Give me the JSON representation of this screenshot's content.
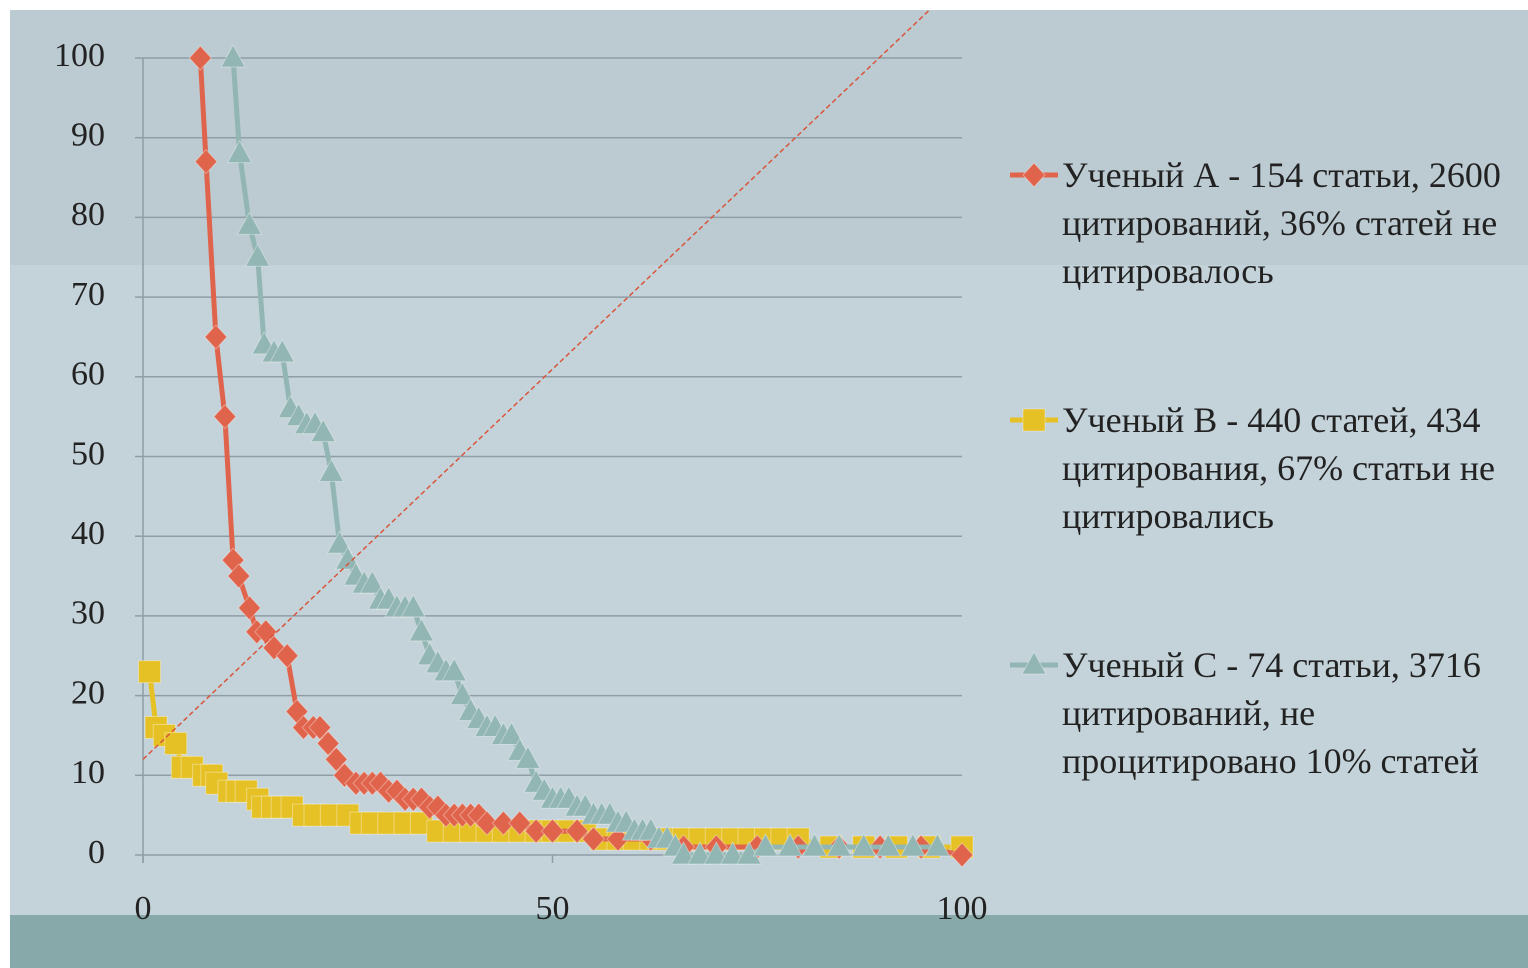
{
  "chart_data": {
    "type": "line",
    "xlim": [
      0,
      100
    ],
    "xticks": [
      0,
      50,
      100
    ],
    "ylim": [
      0,
      100
    ],
    "yticks": [
      0,
      10,
      20,
      30,
      40,
      50,
      60,
      70,
      80,
      90,
      100
    ],
    "grid": true,
    "legend": "right",
    "series": [
      {
        "name": "Ученый А - 154 статьи, 2600 цитирований, 36% статей не цитировалось",
        "color": "#e0644c",
        "marker": "diamond",
        "x": [
          7,
          7.7,
          8.9,
          10,
          11,
          11.7,
          13,
          13.9,
          15,
          16,
          17.6,
          18.8,
          19.6,
          20.8,
          21.6,
          22.6,
          23.6,
          24.6,
          26,
          27,
          28,
          29,
          30,
          31,
          32,
          33,
          34,
          35,
          36,
          37,
          38,
          39,
          40,
          41,
          42,
          44,
          46,
          48,
          50,
          53,
          55,
          58,
          62,
          66,
          70,
          75,
          80,
          85,
          90,
          95,
          100
        ],
        "values": [
          100,
          87,
          65,
          55,
          37,
          35,
          31,
          28,
          28,
          26,
          25,
          18,
          16,
          16,
          16,
          14,
          12,
          10,
          9,
          9,
          9,
          9,
          8,
          8,
          7,
          7,
          7,
          6,
          6,
          5,
          5,
          5,
          5,
          5,
          4,
          4,
          4,
          3,
          3,
          3,
          2,
          2,
          2,
          1,
          1,
          1,
          1,
          1,
          1,
          1,
          0
        ]
      },
      {
        "name": "Ученый В - 440 статей, 434 цитирования, 67% статьи не цитировались",
        "color": "#e6c126",
        "marker": "square",
        "x": [
          0.8,
          1.6,
          2.6,
          4,
          4.8,
          6,
          7.4,
          8.4,
          9,
          10.5,
          11.5,
          12.6,
          14,
          14.6,
          15.8,
          17,
          18.2,
          19.6,
          21,
          23,
          25,
          26.6,
          28,
          30,
          32,
          34,
          36,
          38,
          40,
          42,
          44,
          46,
          48,
          50,
          52,
          54,
          56,
          58,
          60,
          62,
          64,
          66,
          68,
          70,
          72,
          74,
          76,
          78,
          80,
          84,
          88,
          92,
          96,
          100
        ],
        "values": [
          23,
          16,
          15,
          14,
          11,
          11,
          10,
          10,
          9,
          8,
          8,
          8,
          7,
          6,
          6,
          6,
          6,
          5,
          5,
          5,
          5,
          4,
          4,
          4,
          4,
          4,
          3,
          3,
          3,
          3,
          3,
          3,
          3,
          3,
          3,
          3,
          2,
          2,
          2,
          2,
          2,
          2,
          2,
          2,
          2,
          2,
          2,
          2,
          2,
          1,
          1,
          1,
          1,
          1
        ]
      },
      {
        "name": "Ученый С - 74 статьи, 3716 цитирований, не процитировано 10% статей",
        "color": "#92b6b3",
        "marker": "triangle",
        "x": [
          11,
          11.8,
          13,
          14,
          14.8,
          16,
          17,
          18,
          19,
          20,
          21,
          22,
          23,
          24,
          25,
          26,
          27,
          28,
          29,
          30,
          31,
          32,
          33,
          34,
          35,
          36,
          37,
          38,
          39,
          40,
          41,
          42,
          43,
          44,
          45,
          46,
          47,
          48,
          49,
          50,
          51,
          52,
          53,
          54,
          55,
          56,
          57,
          58,
          59,
          60,
          61,
          62,
          63,
          64,
          65,
          66,
          68,
          70,
          72,
          74,
          76,
          79,
          82,
          85,
          88,
          91,
          94,
          97
        ],
        "values": [
          100,
          88,
          79,
          75,
          64,
          63,
          63,
          56,
          55,
          54,
          54,
          53,
          48,
          39,
          37,
          35,
          34,
          34,
          32,
          32,
          31,
          31,
          31,
          28,
          25,
          24,
          23,
          23,
          20,
          18,
          17,
          16,
          16,
          15,
          15,
          13,
          12,
          9,
          8,
          7,
          7,
          7,
          6,
          6,
          5,
          5,
          5,
          4,
          4,
          3,
          3,
          3,
          2,
          2,
          1,
          0,
          0,
          0,
          0,
          0,
          1,
          1,
          1,
          1,
          1,
          1,
          1,
          1
        ]
      }
    ],
    "reference_line": {
      "color": "#d9553a",
      "x": [
        0,
        96
      ],
      "values": [
        12,
        106
      ]
    }
  }
}
